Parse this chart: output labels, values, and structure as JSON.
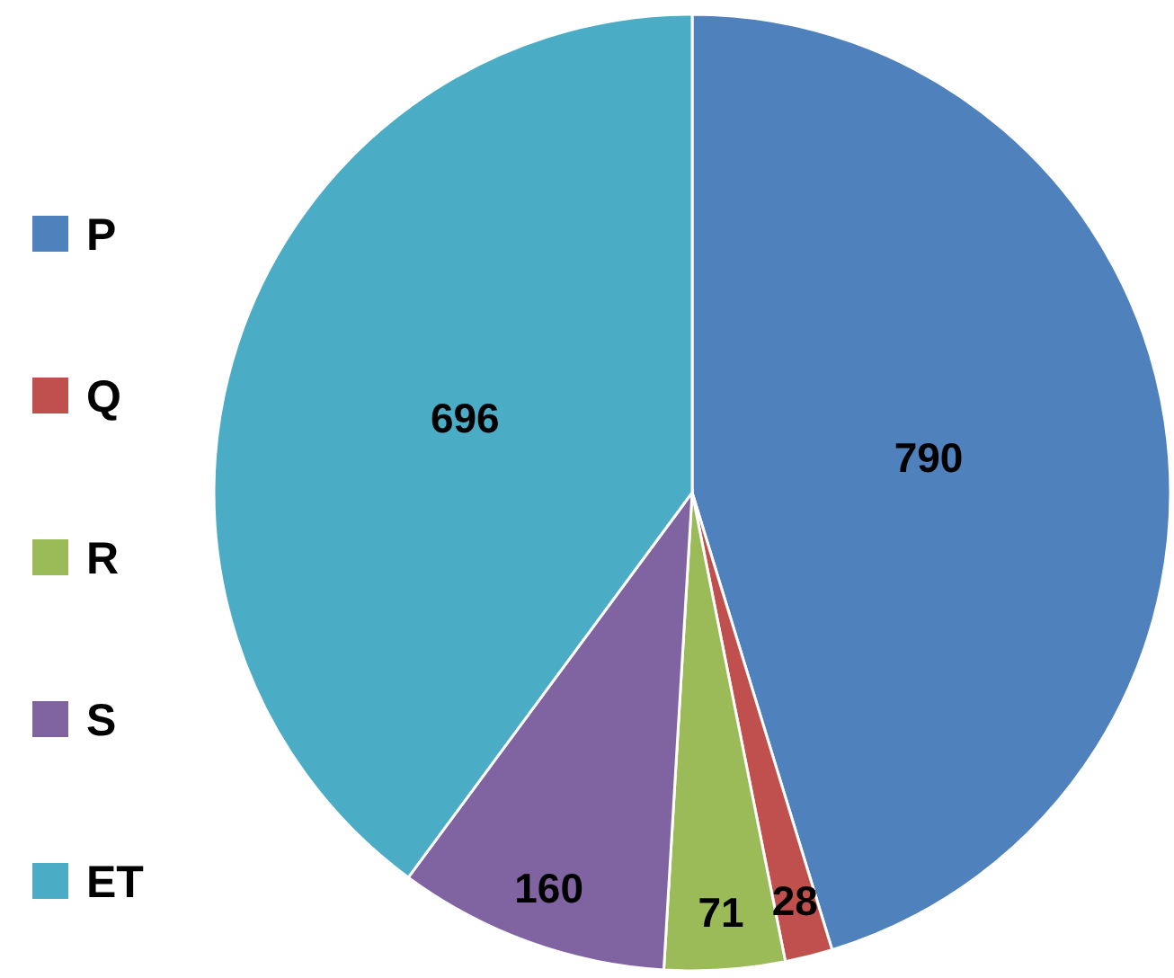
{
  "chart_data": {
    "type": "pie",
    "categories": [
      "P",
      "Q",
      "R",
      "S",
      "ET"
    ],
    "values": [
      790,
      28,
      71,
      160,
      696
    ],
    "colors": [
      "#4f81bd",
      "#c0504d",
      "#9bbb59",
      "#8064a2",
      "#4bacc6"
    ],
    "data_labels": true,
    "legend": "left"
  }
}
